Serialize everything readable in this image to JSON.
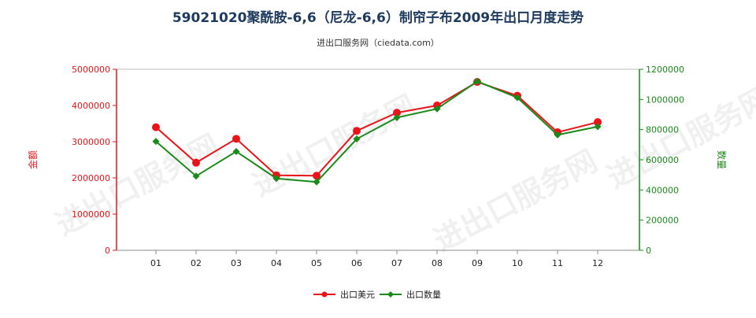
{
  "chart_data": {
    "type": "line",
    "title": "59021020聚酰胺-6,6（尼龙-6,6）制帘子布2009年出口月度走势",
    "subtitle": "进出口服务网（ciedata.com）",
    "categories": [
      "01",
      "02",
      "03",
      "04",
      "05",
      "06",
      "07",
      "08",
      "09",
      "10",
      "11",
      "12"
    ],
    "y_left": {
      "label": "金额",
      "range": [
        0,
        5000000
      ],
      "ticks": [
        "0",
        "1000000",
        "2000000",
        "3000000",
        "4000000",
        "5000000"
      ],
      "tick_values": [
        0,
        1000000,
        2000000,
        3000000,
        4000000,
        5000000
      ]
    },
    "y_right": {
      "label": "数量",
      "range": [
        0,
        1200000
      ],
      "ticks": [
        "0",
        "200000",
        "400000",
        "600000",
        "800000",
        "1000000",
        "1200000"
      ],
      "tick_values": [
        0,
        200000,
        400000,
        600000,
        800000,
        1000000,
        1200000
      ]
    },
    "series": [
      {
        "name": "出口美元",
        "axis": "left",
        "color": "#e8141a",
        "values": [
          3400000,
          2420000,
          3080000,
          2070000,
          2060000,
          3300000,
          3800000,
          4000000,
          4650000,
          4270000,
          3260000,
          3540000
        ]
      },
      {
        "name": "出口数量",
        "axis": "right",
        "color": "#1a8a1a",
        "values": [
          722000,
          492000,
          655000,
          476000,
          453000,
          738000,
          880000,
          938000,
          1120000,
          1012000,
          765000,
          820000
        ]
      }
    ],
    "grid": false,
    "legend_position": "bottom-center",
    "left_axis_color": "#e8141a",
    "right_axis_color": "#1a8a1a"
  }
}
